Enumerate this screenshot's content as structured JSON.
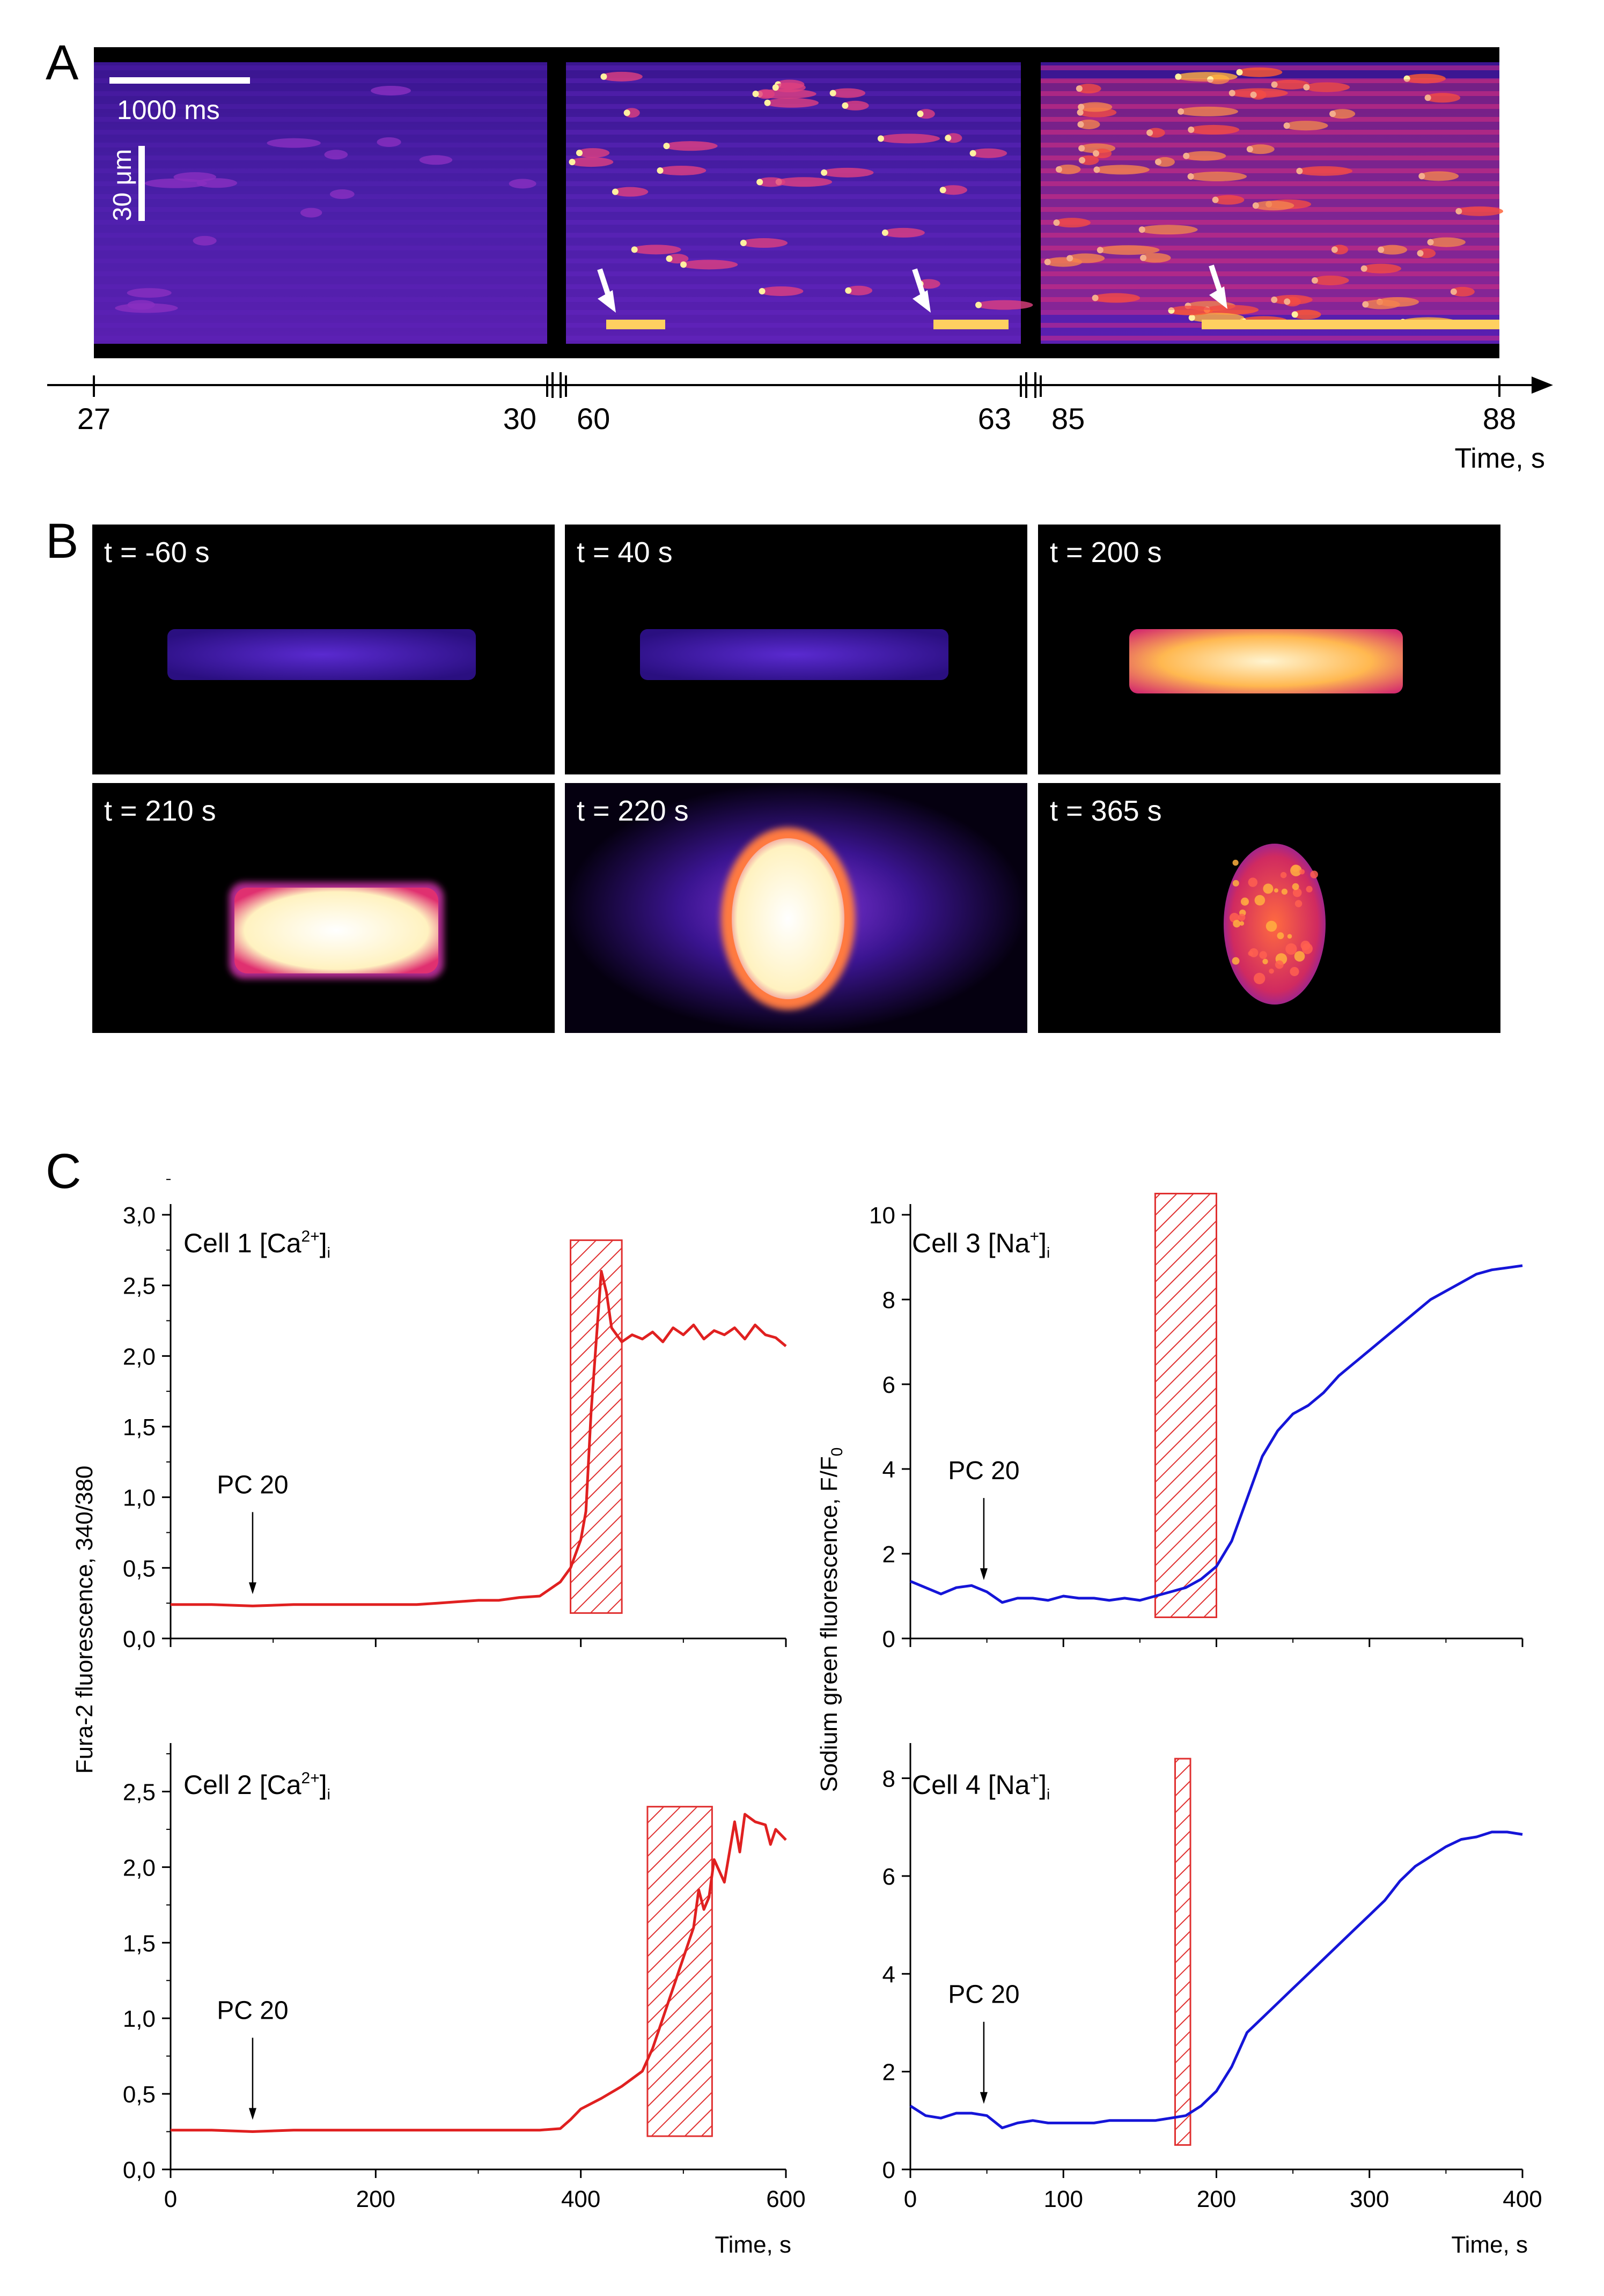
{
  "panels": {
    "a": {
      "letter": "A",
      "scale_time_label": "1000 ms",
      "scale_space_label": "30 μm",
      "axis_title": "Time, s",
      "axis_ticks": [
        "27",
        "30",
        "60",
        "63",
        "85",
        "88"
      ],
      "segments": [
        {
          "start": "27",
          "end": "30",
          "intensity": 0.08
        },
        {
          "start": "60",
          "end": "63",
          "intensity": 0.35
        },
        {
          "start": "85",
          "end": "88",
          "intensity": 0.8
        }
      ],
      "arrow_count": 3
    },
    "b": {
      "letter": "B",
      "frames": [
        {
          "label": "t = -60 s",
          "shape": "rod-dim",
          "glow": false
        },
        {
          "label": "t = 40 s",
          "shape": "rod-dim",
          "glow": false
        },
        {
          "label": "t = 200 s",
          "shape": "rod-bright",
          "glow": false
        },
        {
          "label": "t = 210 s",
          "shape": "rod-saturated",
          "glow": false
        },
        {
          "label": "t = 220 s",
          "shape": "oval-saturated",
          "glow": true
        },
        {
          "label": "t = 365 s",
          "shape": "round-speckled",
          "glow": false
        }
      ]
    },
    "c": {
      "letter": "C",
      "ylabel_left": "Fura-2 fluorescence, 340/380",
      "ylabel_right": "Sodium green fluorescence, F/F0"
    }
  },
  "colors": {
    "calcium_trace": "#e02020",
    "sodium_trace": "#1515d8",
    "hatch": "#e03030",
    "axis": "#000000"
  },
  "chart_data": [
    {
      "id": "cell1",
      "type": "line",
      "label": "Cell 1 [Ca2+]i",
      "ion": "Ca",
      "charge": "2+",
      "xlabel": "",
      "ylabel": "Fura-2 fluorescence, 340/380",
      "xlim": [
        0,
        600
      ],
      "ylim": [
        0,
        3.0
      ],
      "yticks": [
        "0,0",
        "0,5",
        "1,0",
        "1,5",
        "2,0",
        "2,5",
        "3,0"
      ],
      "xticks": [],
      "annotation": {
        "text": "PC 20",
        "x": 80
      },
      "hatch": [
        390,
        440,
        0.18,
        2.82
      ],
      "x": [
        0,
        40,
        80,
        120,
        160,
        200,
        240,
        260,
        280,
        300,
        320,
        340,
        360,
        380,
        390,
        400,
        405,
        410,
        415,
        420,
        425,
        430,
        440,
        450,
        460,
        470,
        480,
        490,
        500,
        510,
        520,
        530,
        540,
        550,
        560,
        570,
        580,
        590,
        600
      ],
      "y": [
        0.24,
        0.24,
        0.23,
        0.24,
        0.24,
        0.24,
        0.24,
        0.25,
        0.26,
        0.27,
        0.27,
        0.29,
        0.3,
        0.4,
        0.5,
        0.7,
        0.9,
        1.6,
        2.1,
        2.6,
        2.45,
        2.2,
        2.1,
        2.15,
        2.12,
        2.17,
        2.1,
        2.2,
        2.15,
        2.22,
        2.12,
        2.18,
        2.15,
        2.2,
        2.12,
        2.22,
        2.15,
        2.13,
        2.07
      ]
    },
    {
      "id": "cell2",
      "type": "line",
      "label": "Cell 2 [Ca2+]i",
      "ion": "Ca",
      "charge": "2+",
      "xlabel": "Time, s",
      "ylabel": "",
      "xlim": [
        0,
        600
      ],
      "ylim": [
        0,
        2.75
      ],
      "yticks": [
        "0,0",
        "0,5",
        "1,0",
        "1,5",
        "2,0",
        "2,5"
      ],
      "xticks": [
        "0",
        "200",
        "400",
        "600"
      ],
      "annotation": {
        "text": "PC 20",
        "x": 80
      },
      "hatch": [
        465,
        528,
        0.22,
        2.4
      ],
      "x": [
        0,
        40,
        80,
        120,
        160,
        200,
        240,
        280,
        320,
        360,
        380,
        390,
        400,
        420,
        440,
        460,
        470,
        480,
        490,
        500,
        510,
        515,
        520,
        525,
        530,
        540,
        550,
        555,
        560,
        570,
        580,
        585,
        590,
        600
      ],
      "y": [
        0.26,
        0.26,
        0.25,
        0.26,
        0.26,
        0.26,
        0.26,
        0.26,
        0.26,
        0.26,
        0.27,
        0.33,
        0.4,
        0.47,
        0.55,
        0.65,
        0.8,
        1.0,
        1.2,
        1.4,
        1.6,
        1.85,
        1.72,
        1.8,
        2.05,
        1.9,
        2.3,
        2.1,
        2.35,
        2.3,
        2.28,
        2.15,
        2.25,
        2.18
      ]
    },
    {
      "id": "cell3",
      "type": "line",
      "label": "Cell 3 [Na+]i",
      "ion": "Na",
      "charge": "+",
      "xlabel": "",
      "ylabel": "Sodium green fluorescence, F/F0",
      "xlim": [
        0,
        400
      ],
      "ylim": [
        0,
        10
      ],
      "yticks": [
        "0",
        "2",
        "4",
        "6",
        "8",
        "10"
      ],
      "xticks": [],
      "annotation": {
        "text": "PC 20",
        "x": 48
      },
      "hatch": [
        160,
        200,
        0.5,
        10.5
      ],
      "x": [
        0,
        10,
        20,
        30,
        40,
        50,
        60,
        70,
        80,
        90,
        100,
        110,
        120,
        130,
        140,
        150,
        160,
        170,
        180,
        190,
        200,
        210,
        220,
        230,
        240,
        250,
        260,
        270,
        280,
        290,
        300,
        310,
        320,
        330,
        340,
        350,
        360,
        370,
        380,
        390,
        400
      ],
      "y": [
        1.35,
        1.2,
        1.05,
        1.2,
        1.25,
        1.1,
        0.85,
        0.95,
        0.95,
        0.9,
        1.0,
        0.95,
        0.95,
        0.9,
        0.95,
        0.9,
        1.0,
        1.1,
        1.2,
        1.4,
        1.7,
        2.3,
        3.3,
        4.3,
        4.9,
        5.3,
        5.5,
        5.8,
        6.2,
        6.5,
        6.8,
        7.1,
        7.4,
        7.7,
        8.0,
        8.2,
        8.4,
        8.6,
        8.7,
        8.75,
        8.8
      ]
    },
    {
      "id": "cell4",
      "type": "line",
      "label": "Cell 4 [Na+]i",
      "ion": "Na",
      "charge": "+",
      "xlabel": "Time, s",
      "ylabel": "",
      "xlim": [
        0,
        400
      ],
      "ylim": [
        0,
        8.5
      ],
      "yticks": [
        "0",
        "2",
        "4",
        "6",
        "8"
      ],
      "xticks": [
        "0",
        "100",
        "200",
        "300",
        "400"
      ],
      "annotation": {
        "text": "PC 20",
        "x": 48
      },
      "hatch": [
        173,
        183,
        0.5,
        8.4
      ],
      "x": [
        0,
        10,
        20,
        30,
        40,
        50,
        60,
        70,
        80,
        90,
        100,
        110,
        120,
        130,
        140,
        150,
        160,
        170,
        180,
        190,
        200,
        210,
        220,
        230,
        240,
        250,
        260,
        270,
        280,
        290,
        300,
        310,
        320,
        330,
        340,
        350,
        360,
        370,
        380,
        390,
        400
      ],
      "y": [
        1.3,
        1.1,
        1.05,
        1.15,
        1.15,
        1.1,
        0.85,
        0.95,
        1.0,
        0.95,
        0.95,
        0.95,
        0.95,
        1.0,
        1.0,
        1.0,
        1.0,
        1.05,
        1.1,
        1.3,
        1.6,
        2.1,
        2.8,
        3.1,
        3.4,
        3.7,
        4.0,
        4.3,
        4.6,
        4.9,
        5.2,
        5.5,
        5.9,
        6.2,
        6.4,
        6.6,
        6.75,
        6.8,
        6.9,
        6.9,
        6.85
      ]
    }
  ]
}
